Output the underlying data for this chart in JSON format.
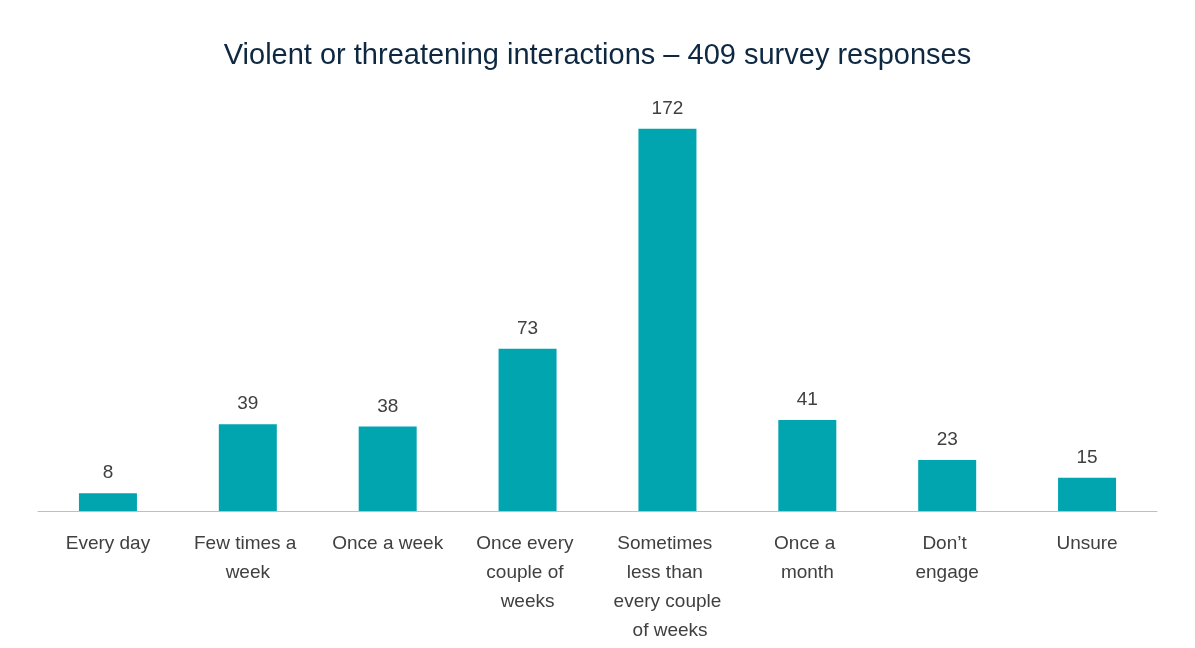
{
  "chart_data": {
    "type": "bar",
    "title": "Violent or threatening interactions – 409 survey responses",
    "categories": [
      "Every day",
      "Few times a week",
      "Once a week",
      "Once every couple of weeks",
      "Sometimes less than every couple of weeks",
      "Once a month",
      "Don’t engage",
      "Unsure"
    ],
    "values": [
      8,
      39,
      38,
      73,
      172,
      41,
      23,
      15
    ],
    "color": "#00a5b0",
    "data_labels": true
  }
}
